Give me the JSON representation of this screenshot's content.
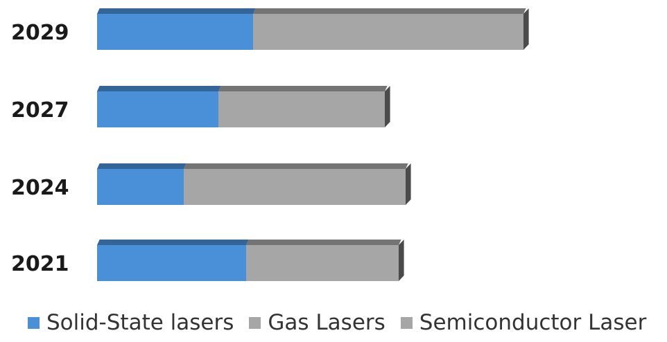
{
  "chart_data": {
    "type": "bar",
    "orientation": "horizontal",
    "stacked": true,
    "style": "3d",
    "categories": [
      "2029",
      "2027",
      "2024",
      "2021"
    ],
    "series": [
      {
        "name": "Solid-State lasers",
        "color": "#4a90d9",
        "values": [
          225,
          175,
          125,
          215
        ]
      },
      {
        "name": "Gas Lasers",
        "color": "#a6a6a6",
        "values": [
          390,
          240,
          320,
          220
        ]
      },
      {
        "name": "Semiconductor Laser",
        "color": "#a6a6a6",
        "values": [
          0,
          0,
          0,
          0
        ]
      }
    ],
    "xlim": [
      0,
      640
    ],
    "grid": false,
    "axis_visible": false,
    "legend_position": "bottom"
  }
}
